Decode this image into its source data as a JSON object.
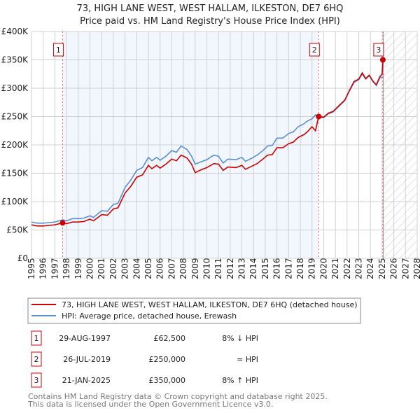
{
  "chart_data": {
    "type": "line",
    "title": "73, HIGH LANE WEST, WEST HALLAM, ILKESTON, DE7 6HQ",
    "subtitle": "Price paid vs. HM Land Registry's House Price Index (HPI)",
    "xlim": [
      1995,
      2028
    ],
    "ylim": [
      0,
      400000
    ],
    "x_ticks": [
      "1995",
      "1996",
      "1997",
      "1998",
      "1999",
      "2000",
      "2001",
      "2002",
      "2003",
      "2004",
      "2005",
      "2006",
      "2007",
      "2008",
      "2009",
      "2010",
      "2011",
      "2012",
      "2013",
      "2014",
      "2015",
      "2016",
      "2017",
      "2018",
      "2019",
      "2020",
      "2021",
      "2022",
      "2023",
      "2024",
      "2025",
      "2026",
      "2027",
      "2028"
    ],
    "y_ticks": [
      {
        "v": 0,
        "label": "£0"
      },
      {
        "v": 50000,
        "label": "£50K"
      },
      {
        "v": 100000,
        "label": "£100K"
      },
      {
        "v": 150000,
        "label": "£150K"
      },
      {
        "v": 200000,
        "label": "£200K"
      },
      {
        "v": 250000,
        "label": "£250K"
      },
      {
        "v": 300000,
        "label": "£300K"
      },
      {
        "v": 350000,
        "label": "£350K"
      },
      {
        "v": 400000,
        "label": "£400K"
      }
    ],
    "grid": true,
    "shaded_period": [
      1997.66,
      2019.57
    ],
    "forecast_from": 2025.1,
    "series": [
      {
        "name": "73, HIGH LANE WEST, WEST HALLAM, ILKESTON, DE7 6HQ (detached house)",
        "color": "#cc0000",
        "points": [
          [
            1995,
            59
          ],
          [
            1995.5,
            57
          ],
          [
            1996,
            57
          ],
          [
            1996.5,
            58
          ],
          [
            1997,
            59
          ],
          [
            1997.66,
            62.5
          ],
          [
            1998,
            61
          ],
          [
            1998.5,
            64
          ],
          [
            1999,
            64
          ],
          [
            1999.5,
            65
          ],
          [
            2000,
            69
          ],
          [
            2000.3,
            66
          ],
          [
            2001,
            77
          ],
          [
            2001.5,
            76
          ],
          [
            2002,
            87
          ],
          [
            2002.4,
            89
          ],
          [
            2003,
            115
          ],
          [
            2003.5,
            127
          ],
          [
            2004,
            143
          ],
          [
            2004.5,
            147
          ],
          [
            2005,
            164
          ],
          [
            2005.3,
            158
          ],
          [
            2005.7,
            164
          ],
          [
            2006,
            159
          ],
          [
            2006.5,
            166
          ],
          [
            2007,
            175
          ],
          [
            2007.4,
            172
          ],
          [
            2007.8,
            182
          ],
          [
            2008.3,
            177
          ],
          [
            2008.7,
            166
          ],
          [
            2009,
            151
          ],
          [
            2009.5,
            156
          ],
          [
            2010,
            160
          ],
          [
            2010.6,
            167
          ],
          [
            2011,
            166
          ],
          [
            2011.4,
            155
          ],
          [
            2011.8,
            161
          ],
          [
            2012.5,
            160
          ],
          [
            2013,
            164
          ],
          [
            2013.3,
            157
          ],
          [
            2013.8,
            162
          ],
          [
            2014.3,
            167
          ],
          [
            2014.8,
            175
          ],
          [
            2015.2,
            182
          ],
          [
            2015.6,
            183
          ],
          [
            2016,
            195
          ],
          [
            2016.5,
            195
          ],
          [
            2017,
            202
          ],
          [
            2017.4,
            205
          ],
          [
            2017.8,
            213
          ],
          [
            2018.3,
            218
          ],
          [
            2018.6,
            223
          ],
          [
            2019.0,
            232
          ],
          [
            2019.3,
            225
          ],
          [
            2019.57,
            250
          ],
          [
            2020,
            249
          ],
          [
            2020.4,
            256
          ],
          [
            2020.8,
            259
          ],
          [
            2021.3,
            269
          ],
          [
            2021.8,
            279
          ],
          [
            2022.2,
            296
          ],
          [
            2022.6,
            312
          ],
          [
            2023,
            316
          ],
          [
            2023.3,
            327
          ],
          [
            2023.6,
            317
          ],
          [
            2023.9,
            323
          ],
          [
            2024.2,
            313
          ],
          [
            2024.5,
            306
          ],
          [
            2024.8,
            320
          ],
          [
            2025.0,
            325
          ],
          [
            2025.06,
            350
          ]
        ]
      },
      {
        "name": "HPI: Average price, detached house, Erewash",
        "color": "#5b8fd4",
        "points": [
          [
            1995,
            64
          ],
          [
            1995.5,
            62
          ],
          [
            1996,
            62
          ],
          [
            1996.5,
            63
          ],
          [
            1997,
            64
          ],
          [
            1997.66,
            68
          ],
          [
            1998,
            66
          ],
          [
            1998.5,
            70
          ],
          [
            1999,
            70
          ],
          [
            1999.5,
            71
          ],
          [
            2000,
            75
          ],
          [
            2000.3,
            72
          ],
          [
            2001,
            84
          ],
          [
            2001.5,
            83
          ],
          [
            2002,
            95
          ],
          [
            2002.4,
            97
          ],
          [
            2003,
            125
          ],
          [
            2003.5,
            138
          ],
          [
            2004,
            155
          ],
          [
            2004.5,
            160
          ],
          [
            2005,
            178
          ],
          [
            2005.3,
            172
          ],
          [
            2005.7,
            178
          ],
          [
            2006,
            173
          ],
          [
            2006.5,
            180
          ],
          [
            2007,
            190
          ],
          [
            2007.4,
            187
          ],
          [
            2007.8,
            198
          ],
          [
            2008.3,
            192
          ],
          [
            2008.7,
            180
          ],
          [
            2009,
            166
          ],
          [
            2009.5,
            170
          ],
          [
            2010,
            174
          ],
          [
            2010.6,
            182
          ],
          [
            2011,
            180
          ],
          [
            2011.4,
            168
          ],
          [
            2011.8,
            175
          ],
          [
            2012.5,
            174
          ],
          [
            2013,
            178
          ],
          [
            2013.3,
            171
          ],
          [
            2013.8,
            176
          ],
          [
            2014.3,
            182
          ],
          [
            2014.8,
            190
          ],
          [
            2015.2,
            198
          ],
          [
            2015.6,
            199
          ],
          [
            2016,
            212
          ],
          [
            2016.5,
            212
          ],
          [
            2017,
            220
          ],
          [
            2017.4,
            223
          ],
          [
            2017.8,
            232
          ],
          [
            2018.3,
            237
          ],
          [
            2018.6,
            242
          ],
          [
            2019.0,
            246
          ],
          [
            2019.3,
            253
          ],
          [
            2019.57,
            248
          ],
          [
            2020,
            248
          ],
          [
            2020.4,
            255
          ],
          [
            2020.8,
            258
          ],
          [
            2021.3,
            268
          ],
          [
            2021.8,
            278
          ],
          [
            2022.2,
            295
          ],
          [
            2022.6,
            310
          ],
          [
            2023,
            315
          ],
          [
            2023.3,
            325
          ],
          [
            2023.6,
            316
          ],
          [
            2023.9,
            322
          ],
          [
            2024.2,
            312
          ],
          [
            2024.5,
            305
          ],
          [
            2024.8,
            318
          ],
          [
            2025.1,
            320
          ]
        ]
      }
    ],
    "value_unit": "thousand GBP",
    "sales": [
      {
        "id": "1",
        "x": 1997.66,
        "value": 62500,
        "date": "29-AUG-1997",
        "price": "£62,500",
        "hpi": "8% ↓ HPI"
      },
      {
        "id": "2",
        "x": 2019.57,
        "value": 250000,
        "date": "26-JUL-2019",
        "price": "£250,000",
        "hpi": "≈ HPI"
      },
      {
        "id": "3",
        "x": 2025.06,
        "value": 350000,
        "date": "21-JAN-2025",
        "price": "£350,000",
        "hpi": "8% ↑ HPI"
      }
    ]
  },
  "legend": {
    "property": "73, HIGH LANE WEST, WEST HALLAM, ILKESTON, DE7 6HQ (detached house)",
    "hpi": "HPI: Average price, detached house, Erewash"
  },
  "footer": {
    "line1": "Contains HM Land Registry data © Crown copyright and database right 2025.",
    "line2": "This data is licensed under the Open Government Licence v3.0."
  }
}
